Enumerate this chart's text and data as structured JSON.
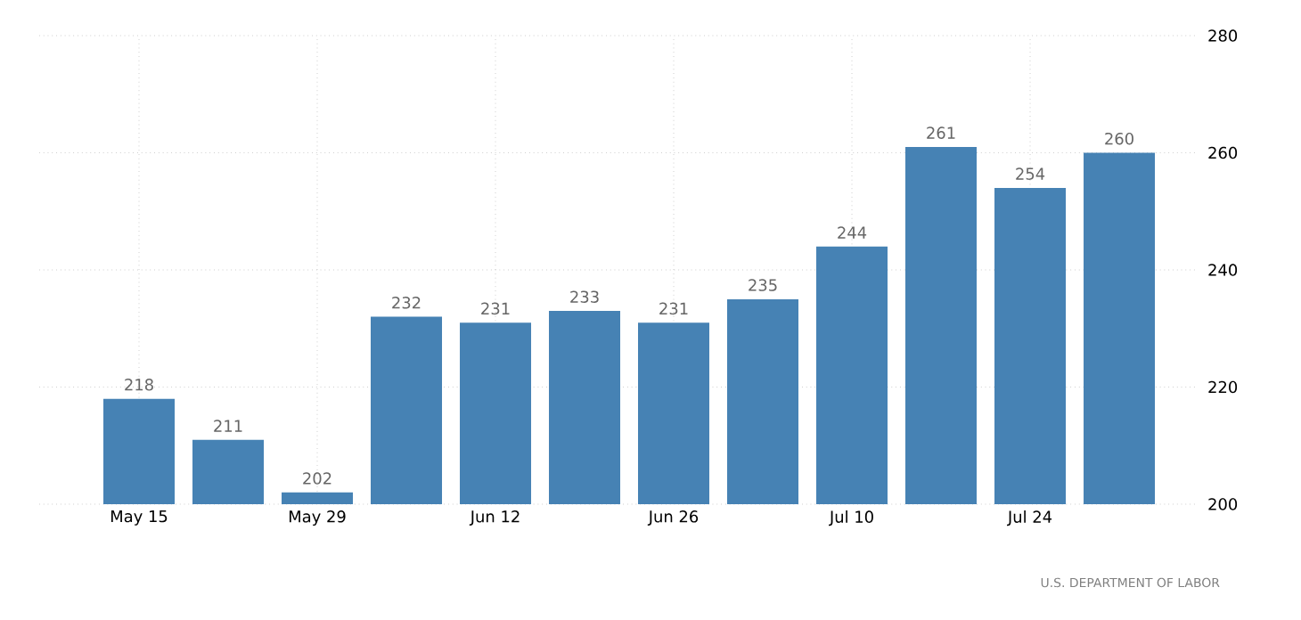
{
  "chart_data": {
    "type": "bar",
    "categories": [
      "May 15",
      null,
      "May 29",
      null,
      "Jun 12",
      null,
      "Jun 26",
      null,
      "Jul 10",
      null,
      "Jul 24",
      null
    ],
    "values": [
      218,
      211,
      202,
      232,
      231,
      233,
      231,
      235,
      244,
      261,
      254,
      260
    ],
    "color": "#4682b4",
    "ylim": [
      200,
      280
    ],
    "yticks": [
      200,
      220,
      240,
      260,
      280
    ],
    "grid": true,
    "data_labels": true,
    "annotations": [
      "U.S. DEPARTMENT OF LABOR"
    ]
  }
}
